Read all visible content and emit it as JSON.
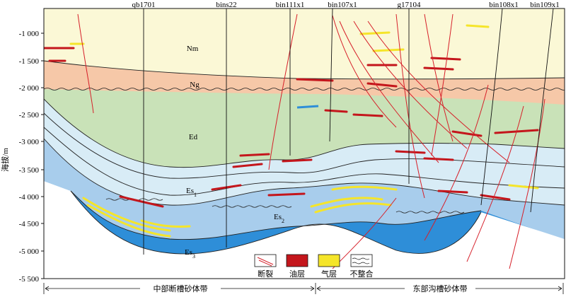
{
  "y_axis": {
    "title": "海拔/m",
    "ticks": [
      "-1 000",
      "-1 500",
      "-2 000",
      "-2 500",
      "-3 000",
      "-3 500",
      "-4 000",
      "-4 500",
      "-5 000",
      "-5 500"
    ]
  },
  "wells": [
    "qb1701",
    "bins22",
    "bin111x1",
    "bin107x1",
    "g17104",
    "bin108x1",
    "bin109x1"
  ],
  "units": {
    "nm": "Nm",
    "ng": "Ng",
    "ed": "Ed",
    "es1_main": "Es",
    "es1_sub": "1",
    "es2_main": "Es",
    "es2_sub": "2",
    "es3_main": "Es",
    "es3_sub": "3"
  },
  "legend": [
    {
      "label": "断裂",
      "symbol": "fault-icon"
    },
    {
      "label": "油层",
      "symbol": "oil-layer-swatch",
      "color": "#c4161c"
    },
    {
      "label": "气层",
      "symbol": "gas-layer-swatch",
      "color": "#f5e52a"
    },
    {
      "label": "不整合",
      "symbol": "unconformity-icon"
    }
  ],
  "zones": {
    "left": "中部断槽砂体带",
    "right": "东部沟槽砂体带"
  },
  "colors": {
    "nm": "#fbf8d6",
    "ng": "#f6c8a8",
    "ed": "#c9e2b8",
    "es1": "#d8ecf6",
    "es2": "#a8cdec",
    "es3": "#2e8ed8",
    "oil": "#c4161c",
    "gas": "#f5e52a",
    "fault": "#d6202a"
  }
}
